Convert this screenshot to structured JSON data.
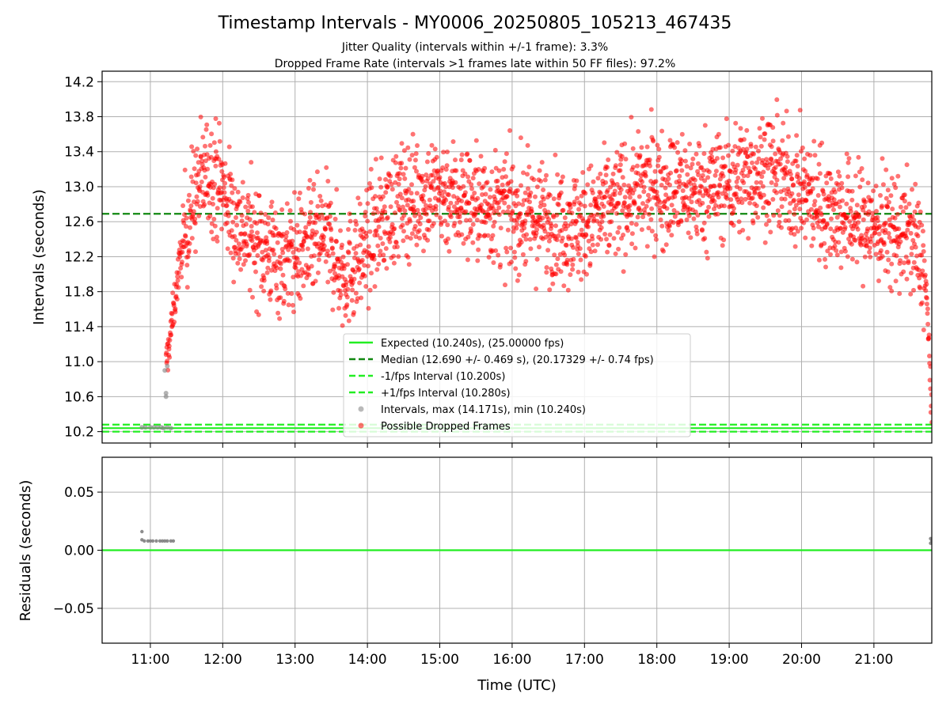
{
  "title": "Timestamp Intervals - MY0006_20250805_105213_467435",
  "subtitle1": "Jitter Quality (intervals within +/-1 frame): 3.3%",
  "subtitle2": "Dropped Frame Rate (intervals >1 frames late within 50 FF files): 97.2%",
  "colors": {
    "expected": "#22ee22",
    "median": "#118811",
    "interval_band": "#22ee22",
    "grid": "#b0b0b0",
    "dropped": "#ff0000",
    "intervals": "#808080"
  },
  "chart_data": [
    {
      "type": "scatter",
      "ylabel": "Intervals (seconds)",
      "xlim": [
        "10:20",
        "21:48"
      ],
      "ylim": [
        10.07,
        14.32
      ],
      "grid": true,
      "legend_position": "lower-center",
      "yticks": [
        "10.2",
        "10.6",
        "11.0",
        "11.4",
        "11.8",
        "12.2",
        "12.6",
        "13.0",
        "13.4",
        "13.8",
        "14.2"
      ],
      "ytick_values": [
        10.2,
        10.6,
        11.0,
        11.4,
        11.8,
        12.2,
        12.6,
        13.0,
        13.4,
        13.8,
        14.2
      ],
      "reference_lines": [
        {
          "name": "Expected (10.240s), (25.00000 fps)",
          "y": 10.24,
          "style": "solid",
          "color": "#22ee22"
        },
        {
          "name": "Median (12.690 +/- 0.469 s), (20.17329 +/- 0.74 fps)",
          "y": 12.69,
          "style": "dashed",
          "color": "#118811"
        },
        {
          "name": "-1/fps Interval (10.200s)",
          "y": 10.2,
          "style": "dashed",
          "color": "#22ee22"
        },
        {
          "name": "+1/fps Interval (10.280s)",
          "y": 10.28,
          "style": "dashed",
          "color": "#22ee22"
        }
      ],
      "series": [
        {
          "name": "Intervals, max (14.171s), min (10.240s)",
          "color": "#808080",
          "marker": "circle",
          "points": [
            [
              "10:53",
              10.25
            ],
            [
              "10:56",
              10.25
            ],
            [
              "11:00",
              10.25
            ],
            [
              "11:03",
              10.25
            ],
            [
              "11:06",
              10.25
            ],
            [
              "11:09",
              10.25
            ],
            [
              "11:11",
              10.24
            ],
            [
              "11:14",
              10.25
            ],
            [
              "11:17",
              10.24
            ],
            [
              "11:13",
              10.6
            ],
            [
              "11:13",
              10.64
            ],
            [
              "11:12",
              10.9
            ],
            [
              "11:14",
              10.95
            ]
          ]
        },
        {
          "name": "Possible Dropped Frames",
          "color": "#ff0000",
          "marker": "circle",
          "trend": [
            [
              "11:13",
              10.95
            ],
            [
              "11:18",
              11.45
            ],
            [
              "11:24",
              12.1
            ],
            [
              "11:30",
              12.55
            ],
            [
              "11:38",
              12.95
            ],
            [
              "11:48",
              13.2
            ],
            [
              "11:58",
              13.05
            ],
            [
              "12:10",
              12.6
            ],
            [
              "12:30",
              12.35
            ],
            [
              "12:50",
              12.15
            ],
            [
              "13:10",
              12.3
            ],
            [
              "13:25",
              12.45
            ],
            [
              "13:40",
              12.0
            ],
            [
              "13:55",
              12.2
            ],
            [
              "14:10",
              12.6
            ],
            [
              "14:30",
              12.85
            ],
            [
              "15:00",
              12.95
            ],
            [
              "15:30",
              12.8
            ],
            [
              "16:00",
              12.7
            ],
            [
              "16:30",
              12.6
            ],
            [
              "17:00",
              12.55
            ],
            [
              "17:30",
              12.85
            ],
            [
              "18:00",
              13.0
            ],
            [
              "18:30",
              12.95
            ],
            [
              "19:00",
              13.05
            ],
            [
              "19:30",
              13.2
            ],
            [
              "20:00",
              12.95
            ],
            [
              "20:30",
              12.7
            ],
            [
              "21:00",
              12.55
            ],
            [
              "21:30",
              12.45
            ],
            [
              "21:40",
              12.2
            ],
            [
              "21:44",
              11.7
            ],
            [
              "21:46",
              11.1
            ],
            [
              "21:47",
              10.6
            ],
            [
              "21:48",
              10.24
            ]
          ],
          "spread": 0.32,
          "count": 2600,
          "max": 14.171
        }
      ]
    },
    {
      "type": "scatter",
      "ylabel": "Residuals (seconds)",
      "xlabel": "Time (UTC)",
      "xlim": [
        "10:20",
        "21:48"
      ],
      "ylim": [
        -0.08,
        0.08
      ],
      "grid": true,
      "yticks": [
        "0.05",
        "0.00",
        "−0.05"
      ],
      "ytick_values": [
        0.05,
        0.0,
        -0.05
      ],
      "xticks": [
        "11:00",
        "12:00",
        "13:00",
        "14:00",
        "15:00",
        "16:00",
        "17:00",
        "18:00",
        "19:00",
        "20:00",
        "21:00"
      ],
      "reference_lines": [
        {
          "y": 0.0,
          "style": "solid",
          "color": "#22ee22"
        }
      ],
      "series": [
        {
          "color": "#808080",
          "marker": "circle",
          "points": [
            [
              "10:53",
              0.016
            ],
            [
              "10:53",
              0.009
            ],
            [
              "10:55",
              0.008
            ],
            [
              "10:58",
              0.008
            ],
            [
              "11:00",
              0.008
            ],
            [
              "11:02",
              0.008
            ],
            [
              "11:05",
              0.008
            ],
            [
              "11:08",
              0.008
            ],
            [
              "11:10",
              0.008
            ],
            [
              "11:12",
              0.008
            ],
            [
              "11:14",
              0.008
            ],
            [
              "11:17",
              0.008
            ],
            [
              "11:19",
              0.008
            ],
            [
              "21:47",
              0.01
            ],
            [
              "21:47",
              0.006
            ],
            [
              "21:48",
              0.008
            ]
          ]
        }
      ]
    }
  ]
}
